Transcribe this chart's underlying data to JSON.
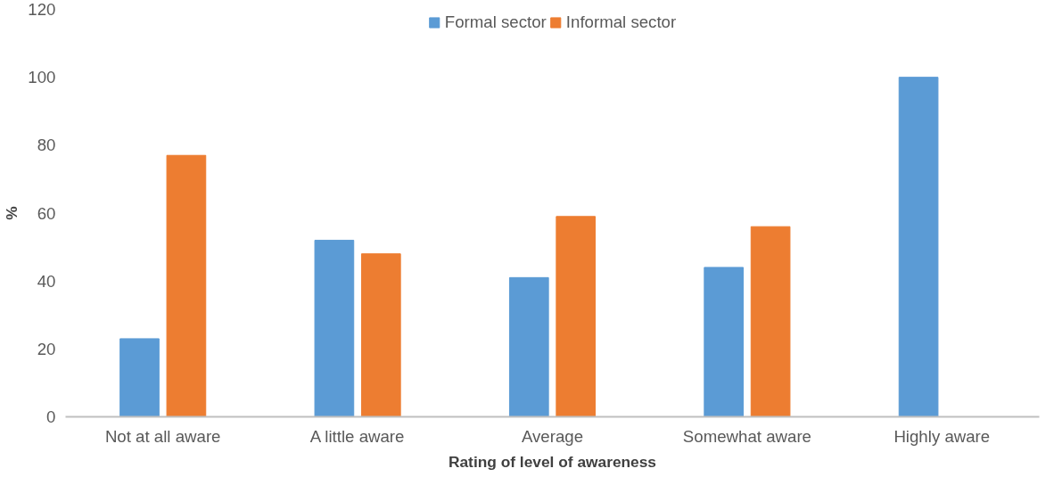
{
  "chart_data": {
    "type": "bar",
    "xlabel": "Rating of level of awareness",
    "ylabel": "%",
    "categories": [
      "Not at all aware",
      "A little aware",
      "Average",
      "Somewhat aware",
      "Highly aware"
    ],
    "series": [
      {
        "name": "Formal sector",
        "color": "#5b9bd5",
        "values": [
          23,
          52,
          41,
          44,
          100
        ]
      },
      {
        "name": "Informal sector",
        "color": "#ed7d31",
        "values": [
          77,
          48,
          59,
          56,
          0
        ]
      }
    ],
    "ylim": [
      0,
      120
    ],
    "yticks": [
      0,
      20,
      40,
      60,
      80,
      100,
      120
    ],
    "grid": false,
    "legend": "top"
  }
}
